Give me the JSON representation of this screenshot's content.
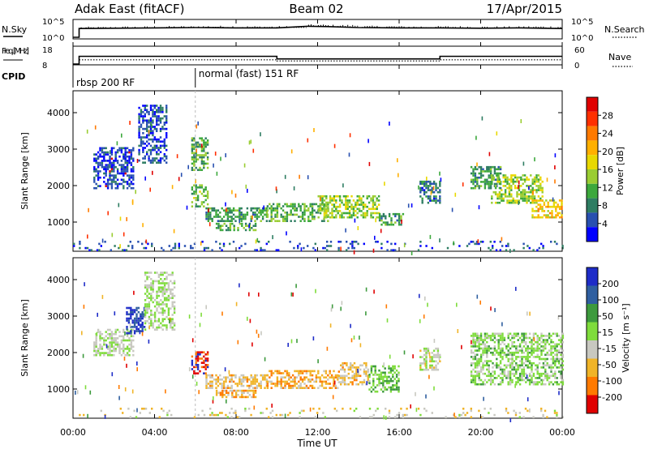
{
  "header": {
    "station": "Adak East (fitACF)",
    "beam": "Beam 02",
    "date": "17/Apr/2015"
  },
  "chart_data": [
    {
      "type": "line",
      "panel": "nsky",
      "ylabel": "N.Sky",
      "right_label": "N.Search",
      "yticks_left": [
        "10^5",
        "10^0"
      ],
      "yticks_right": [
        "10^5",
        "10^0"
      ],
      "x": [
        0.0,
        0.3,
        0.3,
        2,
        4,
        6,
        8,
        10,
        11.5,
        12.5,
        14,
        16,
        18,
        20,
        22,
        24
      ],
      "values": [
        0,
        0,
        2.7,
        2.8,
        2.9,
        3.0,
        2.9,
        2.9,
        3.4,
        3.3,
        3.0,
        2.9,
        2.9,
        2.8,
        2.9,
        2.7
      ]
    },
    {
      "type": "line",
      "panel": "freq",
      "ylabel": "Freq. [MHz]",
      "right_label": "Nave",
      "yticks_left": [
        "18",
        "8"
      ],
      "yticks_right": [
        "60",
        "0"
      ],
      "ylim": [
        8,
        18
      ],
      "series": [
        {
          "x": [
            0,
            0.3,
            0.3,
            10,
            10,
            18,
            18,
            24
          ],
          "values": [
            8,
            8,
            12.5,
            12.5,
            11,
            11,
            12.5,
            12.5
          ]
        },
        {
          "x": [
            0.3,
            10,
            10,
            18,
            18,
            24
          ],
          "values": [
            10.5,
            10.5,
            9.8,
            9.8,
            10.5,
            10.5
          ]
        }
      ]
    },
    {
      "type": "table",
      "panel": "cpid",
      "label": "CPID",
      "segments": [
        {
          "start": 0,
          "end": 6,
          "text": "rbsp 200 RF"
        },
        {
          "start": 6,
          "end": 24,
          "text": "normal (fast) 151 RF"
        }
      ]
    },
    {
      "type": "heatmap",
      "panel": "power",
      "ylabel": "Slant Range [km]",
      "xlabel": "",
      "ylim": [
        200,
        4600
      ],
      "yticks": [
        1000,
        2000,
        3000,
        4000
      ],
      "colorbar": {
        "label": "Power [dB]",
        "ticks": [
          "28",
          "24",
          "20",
          "16",
          "12",
          "8",
          "4"
        ],
        "colors": [
          "#e00000",
          "#ff3000",
          "#ff7a00",
          "#ffb000",
          "#e8d800",
          "#9acd32",
          "#3ca83c",
          "#2e7d62",
          "#2850b0",
          "#0000ff"
        ]
      },
      "regions": [
        {
          "t0": 1.0,
          "t1": 3.0,
          "r0": 1900,
          "r1": 3000,
          "level": 0.12
        },
        {
          "t0": 3.2,
          "t1": 4.6,
          "r0": 2600,
          "r1": 4200,
          "level": 0.15
        },
        {
          "t0": 5.8,
          "t1": 6.6,
          "r0": 2400,
          "r1": 3300,
          "level": 0.35
        },
        {
          "t0": 5.8,
          "t1": 6.6,
          "r0": 1400,
          "r1": 2000,
          "level": 0.4
        },
        {
          "t0": 6.5,
          "t1": 9.5,
          "r0": 1000,
          "r1": 1400,
          "level": 0.3
        },
        {
          "t0": 7.0,
          "t1": 9.0,
          "r0": 750,
          "r1": 950,
          "level": 0.35
        },
        {
          "t0": 9.5,
          "t1": 12.5,
          "r0": 1000,
          "r1": 1500,
          "level": 0.35
        },
        {
          "t0": 12.0,
          "t1": 15.0,
          "r0": 1100,
          "r1": 1700,
          "level": 0.45
        },
        {
          "t0": 15.0,
          "t1": 16.2,
          "r0": 900,
          "r1": 1200,
          "level": 0.3
        },
        {
          "t0": 17.0,
          "t1": 18.0,
          "r0": 1500,
          "r1": 2100,
          "level": 0.2
        },
        {
          "t0": 19.5,
          "t1": 21.0,
          "r0": 1900,
          "r1": 2500,
          "level": 0.3
        },
        {
          "t0": 20.5,
          "t1": 23.0,
          "r0": 1500,
          "r1": 2300,
          "level": 0.45
        },
        {
          "t0": 22.5,
          "t1": 24.0,
          "r0": 1100,
          "r1": 1600,
          "level": 0.6
        },
        {
          "t0": 0.0,
          "t1": 24.0,
          "r0": 200,
          "r1": 450,
          "level": 0.15
        }
      ]
    },
    {
      "type": "heatmap",
      "panel": "velocity",
      "ylabel": "Slant Range [km]",
      "xlabel": "Time UT",
      "ylim": [
        200,
        4600
      ],
      "yticks": [
        1000,
        2000,
        3000,
        4000
      ],
      "xticks": [
        "00:00",
        "04:00",
        "08:00",
        "12:00",
        "16:00",
        "20:00",
        "00:00"
      ],
      "colorbar": {
        "label": "Velocity [m s⁻¹]",
        "ticks": [
          "200",
          "100",
          "50",
          "15",
          "-15",
          "-50",
          "-100",
          "-200"
        ],
        "colors": [
          "#1e2cc8",
          "#2f5fa0",
          "#3d9a3d",
          "#7fdc3c",
          "#c8c8c0",
          "#f0b428",
          "#ff7a00",
          "#e00000"
        ]
      },
      "regions": [
        {
          "t0": 1.0,
          "t1": 3.0,
          "r0": 1900,
          "r1": 2600,
          "level": 0.5
        },
        {
          "t0": 2.6,
          "t1": 3.5,
          "r0": 2500,
          "r1": 3200,
          "level": 0.9
        },
        {
          "t0": 3.5,
          "t1": 5.0,
          "r0": 2600,
          "r1": 4200,
          "level": 0.5
        },
        {
          "t0": 5.8,
          "t1": 6.6,
          "r0": 1400,
          "r1": 2000,
          "level": 0.05
        },
        {
          "t0": 6.5,
          "t1": 9.5,
          "r0": 1000,
          "r1": 1400,
          "level": 0.35
        },
        {
          "t0": 7.0,
          "t1": 9.0,
          "r0": 750,
          "r1": 950,
          "level": 0.3
        },
        {
          "t0": 9.5,
          "t1": 13.0,
          "r0": 1000,
          "r1": 1500,
          "level": 0.3
        },
        {
          "t0": 13.0,
          "t1": 14.5,
          "r0": 1100,
          "r1": 1700,
          "level": 0.35
        },
        {
          "t0": 14.5,
          "t1": 16.0,
          "r0": 900,
          "r1": 1600,
          "level": 0.62
        },
        {
          "t0": 17.0,
          "t1": 18.0,
          "r0": 1500,
          "r1": 2100,
          "level": 0.45
        },
        {
          "t0": 19.5,
          "t1": 24.0,
          "r0": 1100,
          "r1": 2500,
          "level": 0.55
        },
        {
          "t0": 0.0,
          "t1": 24.0,
          "r0": 200,
          "r1": 450,
          "level": 0.4
        }
      ]
    }
  ]
}
